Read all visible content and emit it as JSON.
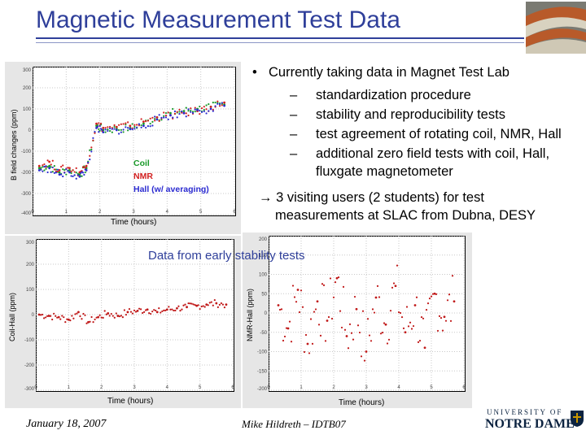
{
  "slide": {
    "title": "Magnetic Measurement Test Data",
    "caption": "Data from early stability tests",
    "footer_date": "January 18, 2007",
    "footer_author": "Mike Hildreth – IDTB07",
    "logo_text_line1": "UNIVERSITY OF",
    "logo_text_line2": "NOTRE DAME"
  },
  "bullets": {
    "main": "Currently taking data in Magnet Test Lab",
    "subs": [
      "standardization procedure",
      "stability and reproducibility tests",
      "test agreement of rotating coil, NMR, Hall",
      "additional zero field tests with coil, Hall,"
    ],
    "sub_continuation": "fluxgate magnetometer",
    "arrow_line1": "→ 3 visiting users (2 students) for test",
    "arrow_line2": "measurements at SLAC from Dubna, DESY"
  },
  "chart_data": [
    {
      "type": "scatter",
      "title": "",
      "xlabel": "Time (hours)",
      "ylabel": "B field changes (ppm)",
      "xlim": [
        0,
        6
      ],
      "ylim": [
        -400,
        300
      ],
      "xticks": [
        "0",
        "1",
        "2",
        "3",
        "4",
        "5",
        "6"
      ],
      "yticks": [
        "300",
        "200",
        "100",
        "0",
        "-100",
        "-200",
        "-300",
        "-400"
      ],
      "legend": [
        "Coil",
        "NMR",
        "Hall (w/ averaging)"
      ],
      "colors": {
        "coil": "#1a9a2a",
        "nmr": "#d22020",
        "hall": "#2a2ad0"
      },
      "series": [
        {
          "name": "Coil",
          "x": [
            0.2,
            0.5,
            0.8,
            1.1,
            1.4,
            1.6,
            1.9,
            2.1,
            2.5,
            2.9,
            3.3,
            3.7,
            4.1,
            4.5,
            4.9,
            5.3,
            5.7
          ],
          "values": [
            -180,
            -170,
            -200,
            -190,
            -210,
            -180,
            20,
            0,
            5,
            10,
            30,
            60,
            80,
            90,
            100,
            110,
            120
          ]
        },
        {
          "name": "NMR",
          "x": [
            0.2,
            0.5,
            0.8,
            1.1,
            1.4,
            1.6,
            1.9,
            2.1,
            2.5,
            2.9,
            3.3,
            3.7,
            4.1,
            4.5,
            4.9,
            5.3,
            5.7
          ],
          "values": [
            -170,
            -150,
            -190,
            -180,
            -200,
            -170,
            30,
            10,
            15,
            20,
            40,
            60,
            70,
            80,
            90,
            110,
            130
          ]
        },
        {
          "name": "Hall (w/ averaging)",
          "x": [
            0.2,
            0.5,
            0.8,
            1.1,
            1.4,
            1.6,
            1.9,
            2.1,
            2.5,
            2.9,
            3.3,
            3.7,
            4.1,
            4.5,
            4.9,
            5.3,
            5.7
          ],
          "values": [
            -190,
            -180,
            -210,
            -200,
            -220,
            -190,
            10,
            -10,
            0,
            5,
            20,
            50,
            70,
            80,
            95,
            100,
            115
          ]
        }
      ]
    },
    {
      "type": "scatter",
      "title": "",
      "xlabel": "Time (hours)",
      "ylabel": "Coil-Hall (ppm)",
      "xlim": [
        0,
        6
      ],
      "ylim": [
        -300,
        300
      ],
      "xticks": [
        "0",
        "1",
        "2",
        "3",
        "4",
        "5",
        "6"
      ],
      "yticks": [
        "300",
        "200",
        "100",
        "0",
        "-100",
        "-200",
        "-300"
      ],
      "series": [
        {
          "name": "",
          "x": [
            0.1,
            0.4,
            0.7,
            1.0,
            1.3,
            1.6,
            1.9,
            2.2,
            2.5,
            2.8,
            3.1,
            3.4,
            3.7,
            4.0,
            4.3,
            4.6,
            4.9,
            5.2,
            5.5,
            5.8
          ],
          "values": [
            0,
            -5,
            -10,
            -20,
            10,
            -30,
            -10,
            5,
            -5,
            10,
            15,
            20,
            10,
            20,
            25,
            30,
            35,
            40,
            45,
            40
          ]
        }
      ]
    },
    {
      "type": "scatter",
      "title": "",
      "xlabel": "Time (hours)",
      "ylabel": "NMR-Hall (ppm)",
      "xlim": [
        0,
        6
      ],
      "ylim": [
        -200,
        200
      ],
      "xticks": [
        "0",
        "1",
        "2",
        "3",
        "4",
        "5",
        "6"
      ],
      "yticks": [
        "200",
        "150",
        "100",
        "50",
        "0",
        "-50",
        "-100",
        "-150",
        "-200"
      ],
      "series": [
        {
          "name": "",
          "x": [
            0.3,
            0.6,
            0.9,
            1.2,
            1.5,
            1.8,
            2.1,
            2.4,
            2.7,
            3.0,
            3.3,
            3.6,
            3.9,
            4.2,
            4.5,
            4.8,
            5.1,
            5.4,
            5.7
          ],
          "values": [
            20,
            -40,
            60,
            -80,
            30,
            -20,
            90,
            -60,
            10,
            -100,
            40,
            -30,
            70,
            -50,
            20,
            -90,
            50,
            -10,
            30
          ]
        }
      ]
    }
  ]
}
